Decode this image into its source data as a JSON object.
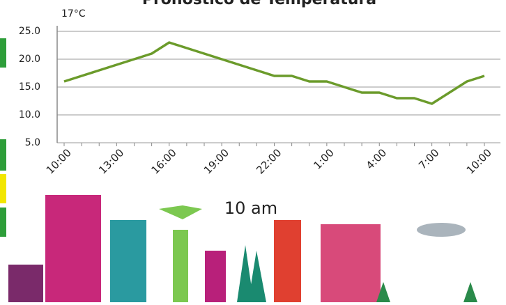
{
  "header": {
    "title": "Pronóstico de Temperatura",
    "current_temp": "17°C",
    "time_label": "10 am"
  },
  "chart_data": {
    "type": "line",
    "categories": [
      "10:00",
      null,
      null,
      "13:00",
      null,
      null,
      "16:00",
      null,
      null,
      "19:00",
      null,
      null,
      "22:00",
      null,
      null,
      "1:00",
      null,
      null,
      "4:00",
      null,
      null,
      "7:00",
      null,
      null,
      "10:00"
    ],
    "series": [
      {
        "name": "Temperatura",
        "color": "#6b9b2b",
        "values": [
          16,
          17,
          18,
          19,
          20,
          21,
          23,
          22,
          21,
          20,
          19,
          18,
          17,
          17,
          16,
          16,
          15,
          14,
          14,
          13,
          13,
          12,
          14,
          16,
          17
        ]
      }
    ],
    "ylim": [
      5,
      25
    ],
    "yticks": [
      {
        "value": 5,
        "label": "5.0"
      },
      {
        "value": 10,
        "label": "10.0"
      },
      {
        "value": 15,
        "label": "15.0"
      },
      {
        "value": 20,
        "label": "20.0"
      },
      {
        "value": 25,
        "label": "25.0"
      }
    ],
    "grid": true
  }
}
